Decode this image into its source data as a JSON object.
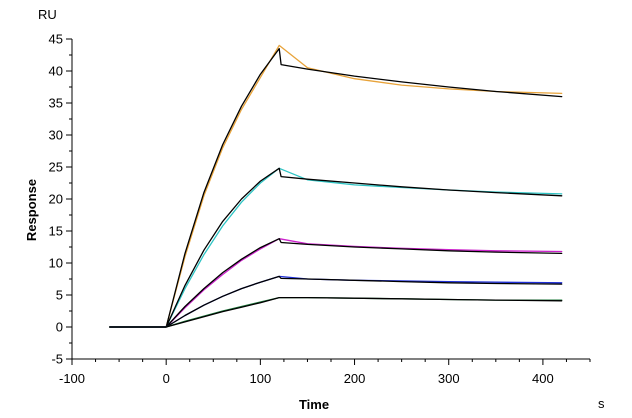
{
  "chart_data": {
    "type": "line",
    "title": "",
    "xlabel": "Time",
    "x_unit": "s",
    "ylabel": "Response",
    "y_unit": "RU",
    "xlim": [
      -100,
      450
    ],
    "ylim": [
      -5,
      45
    ],
    "x_ticks": [
      -100,
      0,
      100,
      200,
      300,
      400
    ],
    "y_ticks": [
      -5,
      0,
      5,
      10,
      15,
      20,
      25,
      30,
      35,
      40,
      45
    ],
    "x_tick_labels": [
      "-100",
      "0",
      "100",
      "200",
      "300",
      "400"
    ],
    "y_tick_labels": [
      "-5",
      "0",
      "5",
      "10",
      "15",
      "20",
      "25",
      "30",
      "35",
      "40",
      "45"
    ],
    "grid": false,
    "legend": "none",
    "series": [
      {
        "color": "#e8a33a",
        "x": [
          -60,
          0,
          20,
          40,
          60,
          80,
          100,
          120,
          150,
          200,
          250,
          300,
          350,
          420
        ],
        "y": [
          0,
          0,
          11,
          20.5,
          28,
          34,
          39,
          44,
          40.5,
          38.8,
          37.8,
          37.2,
          36.8,
          36.5
        ]
      },
      {
        "color": "#000000",
        "x": [
          -60,
          0,
          20,
          40,
          60,
          80,
          100,
          120,
          122,
          150,
          200,
          250,
          300,
          350,
          420
        ],
        "y": [
          0,
          0,
          11.5,
          21,
          28.5,
          34.5,
          39.5,
          43.5,
          41,
          40.3,
          39.2,
          38.3,
          37.5,
          36.8,
          36
        ]
      },
      {
        "color": "#2ec4c4",
        "x": [
          -60,
          0,
          20,
          40,
          60,
          80,
          100,
          120,
          150,
          200,
          250,
          300,
          350,
          420
        ],
        "y": [
          0,
          0,
          6,
          11.3,
          15.8,
          19.5,
          22.5,
          24.8,
          23,
          22.2,
          21.8,
          21.4,
          21.1,
          20.8
        ]
      },
      {
        "color": "#000000",
        "x": [
          -60,
          0,
          20,
          40,
          60,
          80,
          100,
          120,
          122,
          150,
          200,
          250,
          300,
          350,
          420
        ],
        "y": [
          0,
          0,
          6.5,
          12,
          16.5,
          20,
          22.8,
          24.8,
          23.5,
          23.1,
          22.5,
          21.9,
          21.4,
          21,
          20.5
        ]
      },
      {
        "color": "#cc22cc",
        "x": [
          -60,
          0,
          20,
          40,
          60,
          80,
          100,
          120,
          150,
          200,
          250,
          300,
          350,
          420
        ],
        "y": [
          0,
          0,
          3,
          5.8,
          8.2,
          10.4,
          12.2,
          13.8,
          13,
          12.6,
          12.3,
          12.1,
          11.9,
          11.8
        ]
      },
      {
        "color": "#000000",
        "x": [
          -60,
          0,
          20,
          40,
          60,
          80,
          100,
          120,
          122,
          150,
          200,
          250,
          300,
          350,
          420
        ],
        "y": [
          0,
          0,
          3.2,
          6,
          8.5,
          10.6,
          12.4,
          13.8,
          13.2,
          12.9,
          12.5,
          12.2,
          11.9,
          11.7,
          11.5
        ]
      },
      {
        "color": "#1f2fd6",
        "x": [
          -60,
          0,
          20,
          40,
          60,
          80,
          100,
          120,
          150,
          200,
          250,
          300,
          350,
          420
        ],
        "y": [
          0,
          0,
          1.8,
          3.4,
          4.8,
          6,
          7,
          7.9,
          7.5,
          7.3,
          7.2,
          7.1,
          7,
          6.9
        ]
      },
      {
        "color": "#000000",
        "x": [
          -60,
          0,
          20,
          40,
          60,
          80,
          100,
          120,
          122,
          150,
          200,
          250,
          300,
          350,
          420
        ],
        "y": [
          0,
          0,
          1.8,
          3.4,
          4.8,
          6,
          7,
          7.9,
          7.6,
          7.5,
          7.3,
          7.1,
          6.9,
          6.8,
          6.7
        ]
      },
      {
        "color": "#1b7a3a",
        "x": [
          -60,
          0,
          20,
          40,
          60,
          80,
          100,
          120,
          150,
          200,
          250,
          300,
          350,
          420
        ],
        "y": [
          0,
          0,
          0.9,
          1.7,
          2.5,
          3.2,
          3.9,
          4.6,
          4.6,
          4.5,
          4.4,
          4.3,
          4.2,
          4.2
        ]
      },
      {
        "color": "#000000",
        "x": [
          -60,
          0,
          20,
          40,
          60,
          80,
          100,
          120,
          150,
          200,
          250,
          300,
          350,
          420
        ],
        "y": [
          0,
          0,
          0.8,
          1.6,
          2.4,
          3.1,
          3.8,
          4.6,
          4.6,
          4.5,
          4.4,
          4.3,
          4.2,
          4.1
        ]
      }
    ]
  }
}
